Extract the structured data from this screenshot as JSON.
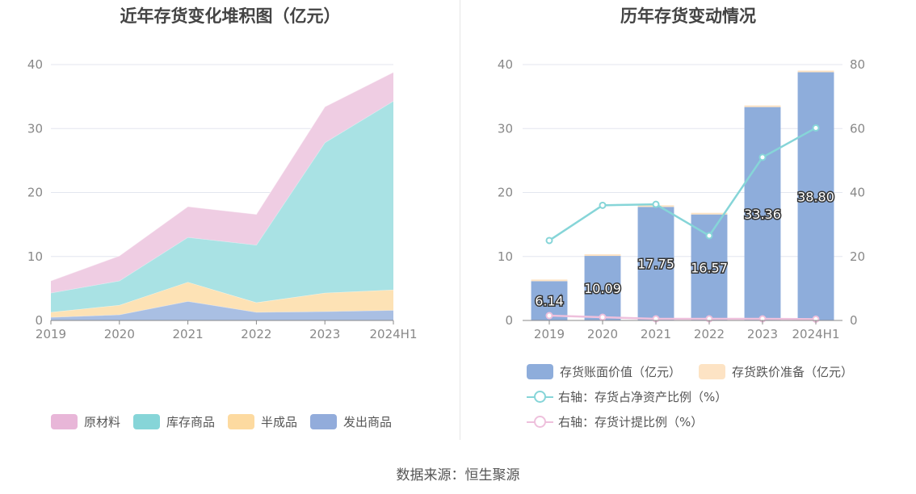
{
  "left": {
    "title": "近年存货变化堆积图（亿元）",
    "legend": [
      {
        "name": "原材料",
        "color": "#e8b6d8"
      },
      {
        "name": "库存商品",
        "color": "#86d5d8"
      },
      {
        "name": "半成品",
        "color": "#fddaa0"
      },
      {
        "name": "发出商品",
        "color": "#92acdb"
      }
    ]
  },
  "right": {
    "title": "历年存货变动情况",
    "legend": [
      {
        "name": "存货账面价值（亿元）",
        "color": "#8eaddb",
        "kind": "bar"
      },
      {
        "name": "存货跌价准备（亿元）",
        "color": "#fde3c4",
        "kind": "bar"
      },
      {
        "name": "右轴：存货占净资产比例（%）",
        "color": "#86d5d8",
        "kind": "line"
      },
      {
        "name": "右轴：存货计提比例（%）",
        "color": "#eec0dc",
        "kind": "line"
      }
    ]
  },
  "source": "数据来源：恒生聚源",
  "chart_data": [
    {
      "type": "area",
      "stacked": true,
      "title": "近年存货变化堆积图（亿元）",
      "categories": [
        "2019",
        "2020",
        "2021",
        "2022",
        "2023",
        "2024H1"
      ],
      "ylim": [
        0,
        40
      ],
      "yticks": [
        0,
        10,
        20,
        30,
        40
      ],
      "grid": true,
      "legend_position": "bottom",
      "series": [
        {
          "name": "发出商品",
          "color": "#a9bfe3",
          "values": [
            0.5,
            0.9,
            3.0,
            1.3,
            1.4,
            1.6
          ]
        },
        {
          "name": "半成品",
          "color": "#fde2b5",
          "values": [
            0.8,
            1.5,
            3.0,
            1.5,
            2.9,
            3.2
          ]
        },
        {
          "name": "库存商品",
          "color": "#a9e2e4",
          "values": [
            3.0,
            3.8,
            7.0,
            9.0,
            23.5,
            29.5
          ]
        },
        {
          "name": "原材料",
          "color": "#efcde3",
          "values": [
            1.9,
            3.9,
            4.8,
            4.8,
            5.6,
            4.5
          ]
        }
      ]
    },
    {
      "type": "bar",
      "title": "历年存货变动情况",
      "categories": [
        "2019",
        "2020",
        "2021",
        "2022",
        "2023",
        "2024H1"
      ],
      "ylim": [
        0,
        40
      ],
      "yticks": [
        0,
        10,
        20,
        30,
        40
      ],
      "y2lim": [
        0,
        80
      ],
      "y2ticks": [
        0,
        20,
        40,
        60,
        80
      ],
      "grid": true,
      "legend_position": "bottom",
      "bar_series": [
        {
          "name": "存货账面价值（亿元）",
          "color": "#8eaddb",
          "values": [
            6.14,
            10.09,
            17.75,
            16.57,
            33.36,
            38.8
          ],
          "labels": [
            "6.14",
            "10.09",
            "17.75",
            "16.57",
            "33.36",
            "38.80"
          ]
        },
        {
          "name": "存货跌价准备（亿元）",
          "color": "#fde3c4",
          "values": [
            0.1,
            0.1,
            0.1,
            0.1,
            0.15,
            0.15
          ]
        }
      ],
      "line_series": [
        {
          "name": "右轴：存货占净资产比例（%）",
          "color": "#86d5d8",
          "axis": "right",
          "values": [
            25,
            36,
            36.3,
            26.5,
            51,
            60.2
          ]
        },
        {
          "name": "右轴：存货计提比例（%）",
          "color": "#eec0dc",
          "axis": "right",
          "values": [
            1.5,
            1.0,
            0.5,
            0.5,
            0.5,
            0.4
          ]
        }
      ]
    }
  ]
}
